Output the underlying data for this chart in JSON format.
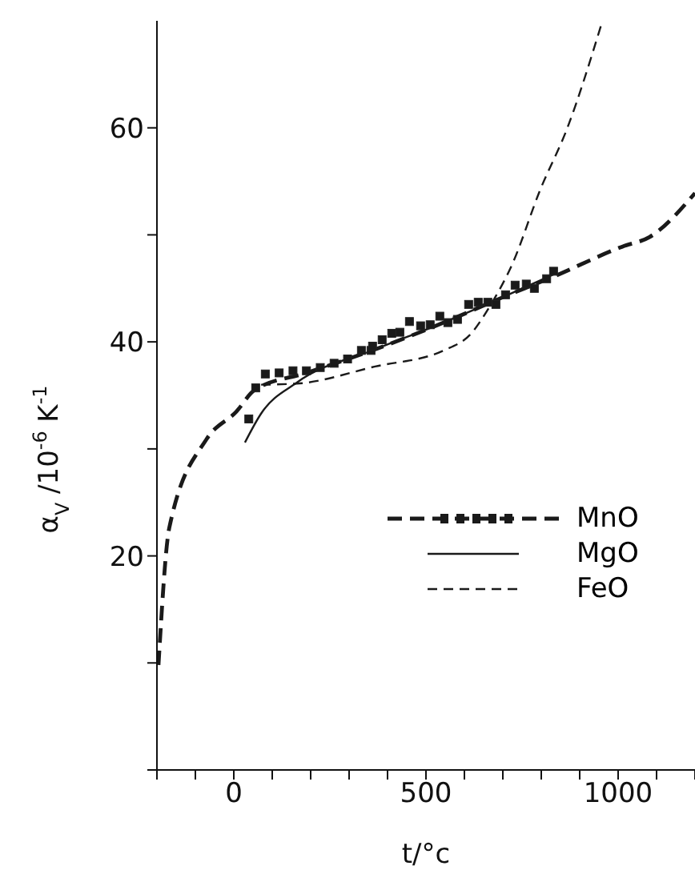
{
  "chart_data": {
    "type": "line",
    "xlabel": "t/°c",
    "ylabel": "α$_{V}$ /10$^{-6}$ K$^{-1}$",
    "xlim": [
      -200,
      1200
    ],
    "ylim": [
      0,
      70
    ],
    "xticks": [
      {
        "value": -200,
        "label": null
      },
      {
        "value": -100,
        "label": null
      },
      0,
      {
        "value": 100,
        "label": null
      },
      {
        "value": 200,
        "label": null
      },
      {
        "value": 300,
        "label": null
      },
      {
        "value": 400,
        "label": null
      },
      500,
      {
        "value": 600,
        "label": null
      },
      {
        "value": 700,
        "label": null
      },
      {
        "value": 800,
        "label": null
      },
      {
        "value": 900,
        "label": null
      },
      1000,
      {
        "value": 1100,
        "label": null
      },
      {
        "value": 1200,
        "label": null
      }
    ],
    "yticks": [
      {
        "value": 0,
        "label": null
      },
      {
        "value": 10,
        "label": null
      },
      20,
      {
        "value": 30,
        "label": null
      },
      40,
      {
        "value": 50,
        "label": null
      },
      60
    ],
    "grid": false,
    "legend": "right",
    "series": [
      {
        "name": "MnO",
        "color": "#1a1a1a",
        "line_style": "dashed",
        "marker": "none",
        "x": [
          -196,
          -168,
          -71,
          7,
          54,
          189,
          368,
          546,
          689,
          832,
          1011,
          1082,
          1200
        ],
        "values": [
          9.8,
          22.6,
          30.9,
          33.5,
          35.5,
          37.1,
          39.3,
          41.8,
          44,
          46.1,
          48.9,
          49.8,
          53.9
        ]
      },
      {
        "type": "scatter",
        "color": "#1a1a1a",
        "marker": "square",
        "x": [
          39,
          57,
          82,
          118,
          154,
          189,
          225,
          261,
          296,
          332,
          357,
          361,
          386,
          411,
          432,
          457,
          486,
          511,
          536,
          557,
          582,
          611,
          636,
          661,
          682,
          707,
          732,
          761,
          782,
          814,
          832
        ],
        "values": [
          32.8,
          35.7,
          37.0,
          37.1,
          37.3,
          37.3,
          37.6,
          38.0,
          38.4,
          39.2,
          39.2,
          39.6,
          40.2,
          40.8,
          40.9,
          41.9,
          41.5,
          41.6,
          42.4,
          41.8,
          42.1,
          43.5,
          43.7,
          43.7,
          43.5,
          44.4,
          45.3,
          45.4,
          45.0,
          45.9,
          46.6
        ]
      },
      {
        "name": "MgO",
        "color": "#1a1a1a",
        "line_style": "solid",
        "marker": "none",
        "x": [
          29,
          71,
          164,
          368,
          546,
          689,
          832
        ],
        "values": [
          30.6,
          33.3,
          36.2,
          39.3,
          41.8,
          44,
          46.3
        ]
      },
      {
        "name": "FeO",
        "color": "#1a1a1a",
        "line_style": "dashed",
        "marker": "none",
        "x": [
          71,
          164,
          368,
          546,
          618,
          664,
          725,
          796,
          868,
          955
        ],
        "values": [
          36.0,
          36.1,
          37.7,
          39.2,
          40.8,
          43.2,
          47.3,
          54.1,
          60,
          69.5
        ]
      }
    ]
  }
}
